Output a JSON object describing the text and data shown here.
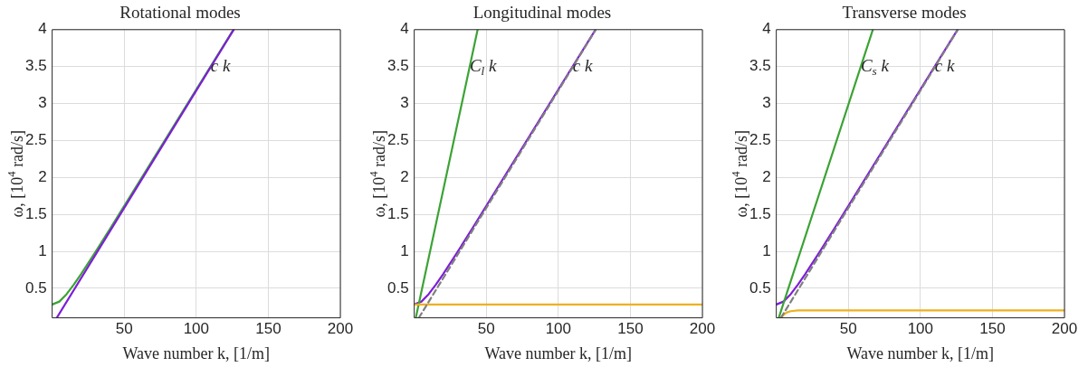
{
  "chart_data": [
    {
      "type": "line",
      "title": "Rotational modes",
      "xlabel": "Wave number k, [1/m]",
      "ylabel": "ω, [10$^{4}$ rad/s]",
      "xlim": [
        0,
        200
      ],
      "ylim": [
        0.1,
        4
      ],
      "xticks": [
        50,
        100,
        150,
        200
      ],
      "yticks": [
        0.5,
        1,
        1.5,
        2,
        2.5,
        3,
        3.5,
        4
      ],
      "grid": true,
      "legend": false,
      "marker": "none",
      "series": [
        {
          "color": "#7e1fd6",
          "x": [
            3.2,
            126
          ],
          "values": [
            0.1,
            4
          ]
        },
        {
          "color": "#3ba335",
          "x": [
            0,
            5,
            10,
            15,
            20,
            30,
            40,
            60,
            80,
            100,
            125.8
          ],
          "values": [
            0.28,
            0.32,
            0.42,
            0.55,
            0.69,
            0.99,
            1.3,
            1.93,
            2.56,
            3.19,
            4
          ]
        }
      ],
      "annotations": [
        {
          "text": "c k",
          "x": 110,
          "y": 3.5
        }
      ]
    },
    {
      "type": "line",
      "title": "Longitudinal modes",
      "xlabel": "Wave number k, [1/m]",
      "ylabel": "ω, [10$^{4}$ rad/s]",
      "xlim": [
        0,
        200
      ],
      "ylim": [
        0.1,
        4
      ],
      "xticks": [
        50,
        100,
        150,
        200
      ],
      "yticks": [
        0.5,
        1,
        1.5,
        2,
        2.5,
        3,
        3.5,
        4
      ],
      "grid": true,
      "legend": false,
      "marker": "none",
      "series": [
        {
          "color": "#808080",
          "line_style": "dashed",
          "x": [
            3.2,
            126
          ],
          "values": [
            0.1,
            4
          ]
        },
        {
          "color": "#edb120",
          "x": [
            0,
            200
          ],
          "values": [
            0.28,
            0.28
          ]
        },
        {
          "color": "#3ba335",
          "x": [
            1.1,
            44
          ],
          "values": [
            0.1,
            4
          ]
        },
        {
          "color": "#7e1fd6",
          "x": [
            0,
            5,
            10,
            15,
            20,
            30,
            40,
            60,
            80,
            100,
            125.8
          ],
          "values": [
            0.28,
            0.32,
            0.42,
            0.55,
            0.69,
            0.99,
            1.3,
            1.93,
            2.56,
            3.19,
            4
          ]
        }
      ],
      "annotations": [
        {
          "text": "C$_{l}$ k",
          "x": 38.5,
          "y": 3.5
        },
        {
          "text": "c k",
          "x": 110,
          "y": 3.5
        }
      ]
    },
    {
      "type": "line",
      "title": "Transverse modes",
      "xlabel": "Wave number k, [1/m]",
      "ylabel": "ω, [10$^{4}$ rad/s]",
      "xlim": [
        0,
        200
      ],
      "ylim": [
        0.1,
        4
      ],
      "xticks": [
        50,
        100,
        150,
        200
      ],
      "yticks": [
        0.5,
        1,
        1.5,
        2,
        2.5,
        3,
        3.5,
        4
      ],
      "grid": true,
      "legend": false,
      "marker": "none",
      "series": [
        {
          "color": "#808080",
          "line_style": "dashed",
          "x": [
            3.2,
            126
          ],
          "values": [
            0.1,
            4
          ]
        },
        {
          "color": "#edb120",
          "x": [
            3.5,
            5,
            7,
            10,
            15,
            20,
            200
          ],
          "values": [
            0.1,
            0.14,
            0.17,
            0.19,
            0.2,
            0.2,
            0.2
          ]
        },
        {
          "color": "#3ba335",
          "x": [
            1.7,
            67
          ],
          "values": [
            0.1,
            4
          ]
        },
        {
          "color": "#7e1fd6",
          "x": [
            0,
            5,
            10,
            15,
            20,
            30,
            40,
            60,
            80,
            100,
            125.8
          ],
          "values": [
            0.28,
            0.32,
            0.42,
            0.55,
            0.69,
            0.99,
            1.3,
            1.93,
            2.56,
            3.19,
            4
          ]
        }
      ],
      "annotations": [
        {
          "text": "C$_{s}$ k",
          "x": 58.6,
          "y": 3.5
        },
        {
          "text": "c k",
          "x": 110,
          "y": 3.5
        }
      ]
    }
  ]
}
